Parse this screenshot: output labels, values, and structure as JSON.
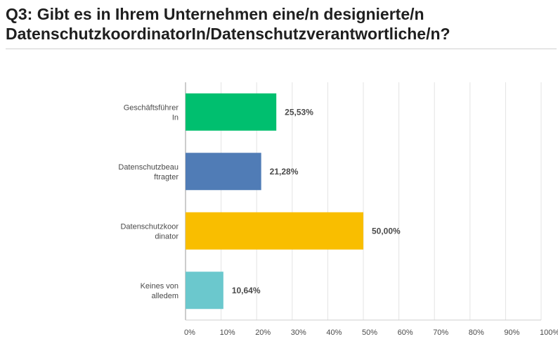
{
  "page": {
    "title_line1": "Q3: Gibt es in Ihrem Unternehmen eine/n designierte/n",
    "title_line2": "DatenschutzkoordinatorIn/Datenschutzverantwortliche/n?"
  },
  "chart_data": {
    "type": "bar",
    "orientation": "horizontal",
    "categories": [
      [
        "Geschäftsführer",
        "In"
      ],
      [
        "Datenschutzbeau",
        "ftragter"
      ],
      [
        "Datenschutzkoor",
        "dinator"
      ],
      [
        "Keines von",
        "alledem"
      ]
    ],
    "values": [
      25.53,
      21.28,
      50.0,
      10.64
    ],
    "value_labels": [
      "25,53%",
      "21,28%",
      "50,00%",
      "10,64%"
    ],
    "colors": [
      "#00bf6f",
      "#507cb6",
      "#f9be00",
      "#6bc8cd"
    ],
    "xlim": [
      0,
      100
    ],
    "ticks": [
      0,
      10,
      20,
      30,
      40,
      50,
      60,
      70,
      80,
      90,
      100
    ],
    "tick_labels": [
      "0%",
      "10%",
      "20%",
      "30%",
      "40%",
      "50%",
      "60%",
      "70%",
      "80%",
      "90%",
      "100%"
    ],
    "grid": true
  }
}
